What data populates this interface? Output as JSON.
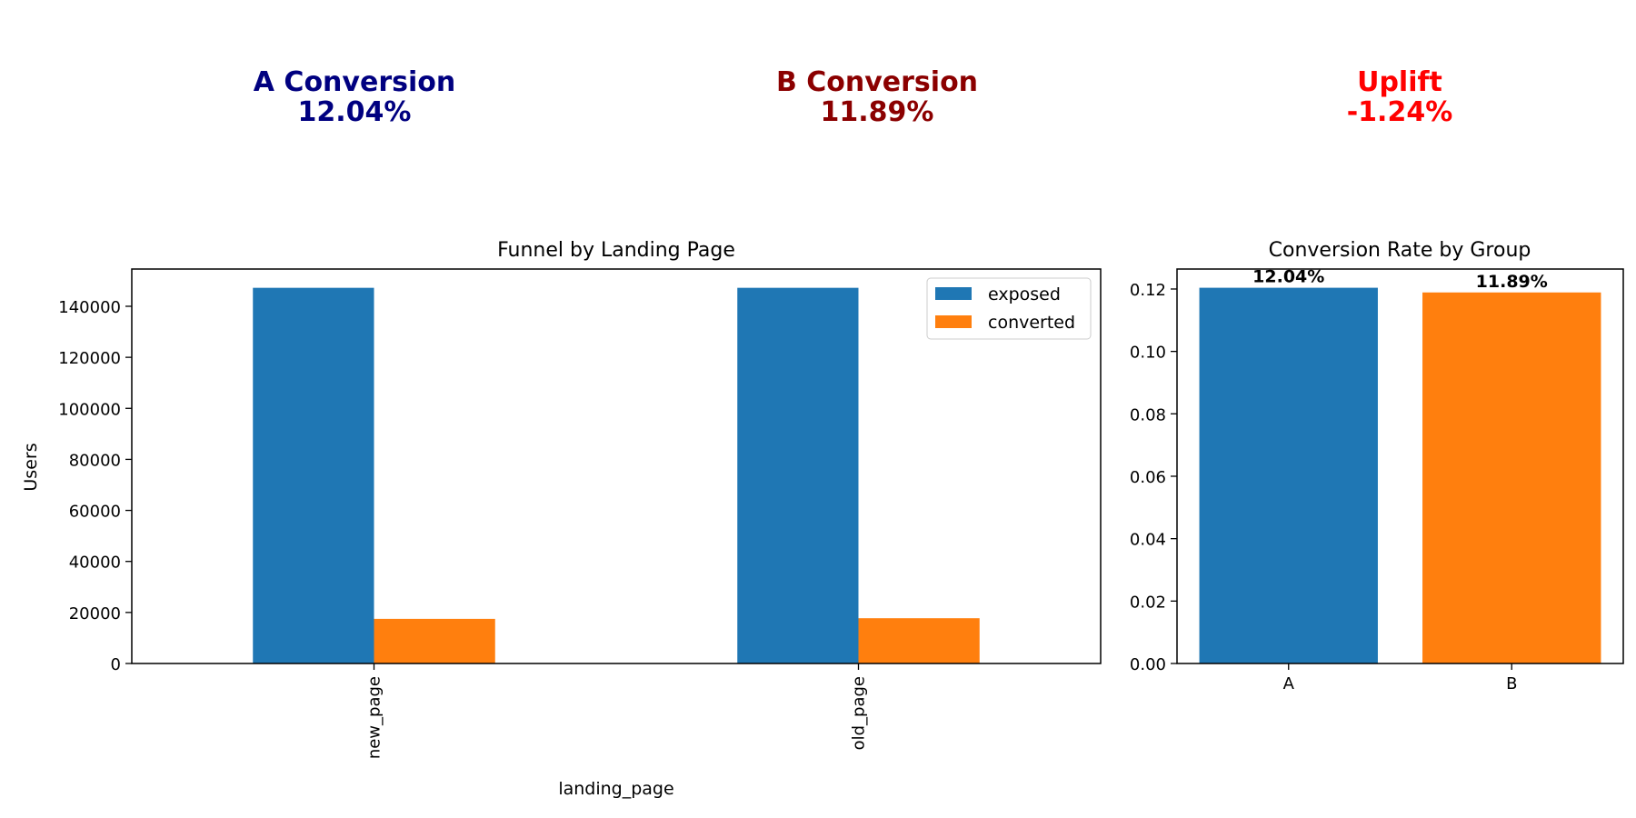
{
  "kpis": {
    "a": {
      "label": "A Conversion",
      "value": "12.04%",
      "color": "#000080"
    },
    "b": {
      "label": "B Conversion",
      "value": "11.89%",
      "color": "#8b0000"
    },
    "uplift": {
      "label": "Uplift",
      "value": "-1.24%",
      "color": "#ff0000"
    }
  },
  "chart_data": [
    {
      "type": "bar",
      "title": "Funnel by Landing Page",
      "xlabel": "landing_page",
      "ylabel": "Users",
      "categories": [
        "new_page",
        "old_page"
      ],
      "series": [
        {
          "name": "exposed",
          "values": [
            147239,
            147239
          ],
          "color": "#1f77b4"
        },
        {
          "name": "converted",
          "values": [
            17498,
            17739
          ],
          "color": "#ff7f0e"
        }
      ],
      "ylim": [
        0,
        154600
      ],
      "yticks": [
        0,
        20000,
        40000,
        60000,
        80000,
        100000,
        120000,
        140000
      ],
      "legend": "top-right",
      "grid": false
    },
    {
      "type": "bar",
      "title": "Conversion Rate by Group",
      "xlabel": "",
      "ylabel": "",
      "categories": [
        "A",
        "B"
      ],
      "values": [
        0.1204,
        0.1189
      ],
      "data_labels": [
        "12.04%",
        "11.89%"
      ],
      "colors": [
        "#1f77b4",
        "#ff7f0e"
      ],
      "ylim": [
        0,
        0.1264
      ],
      "yticks": [
        "0.00",
        "0.02",
        "0.04",
        "0.06",
        "0.08",
        "0.10",
        "0.12"
      ],
      "grid": false
    }
  ]
}
